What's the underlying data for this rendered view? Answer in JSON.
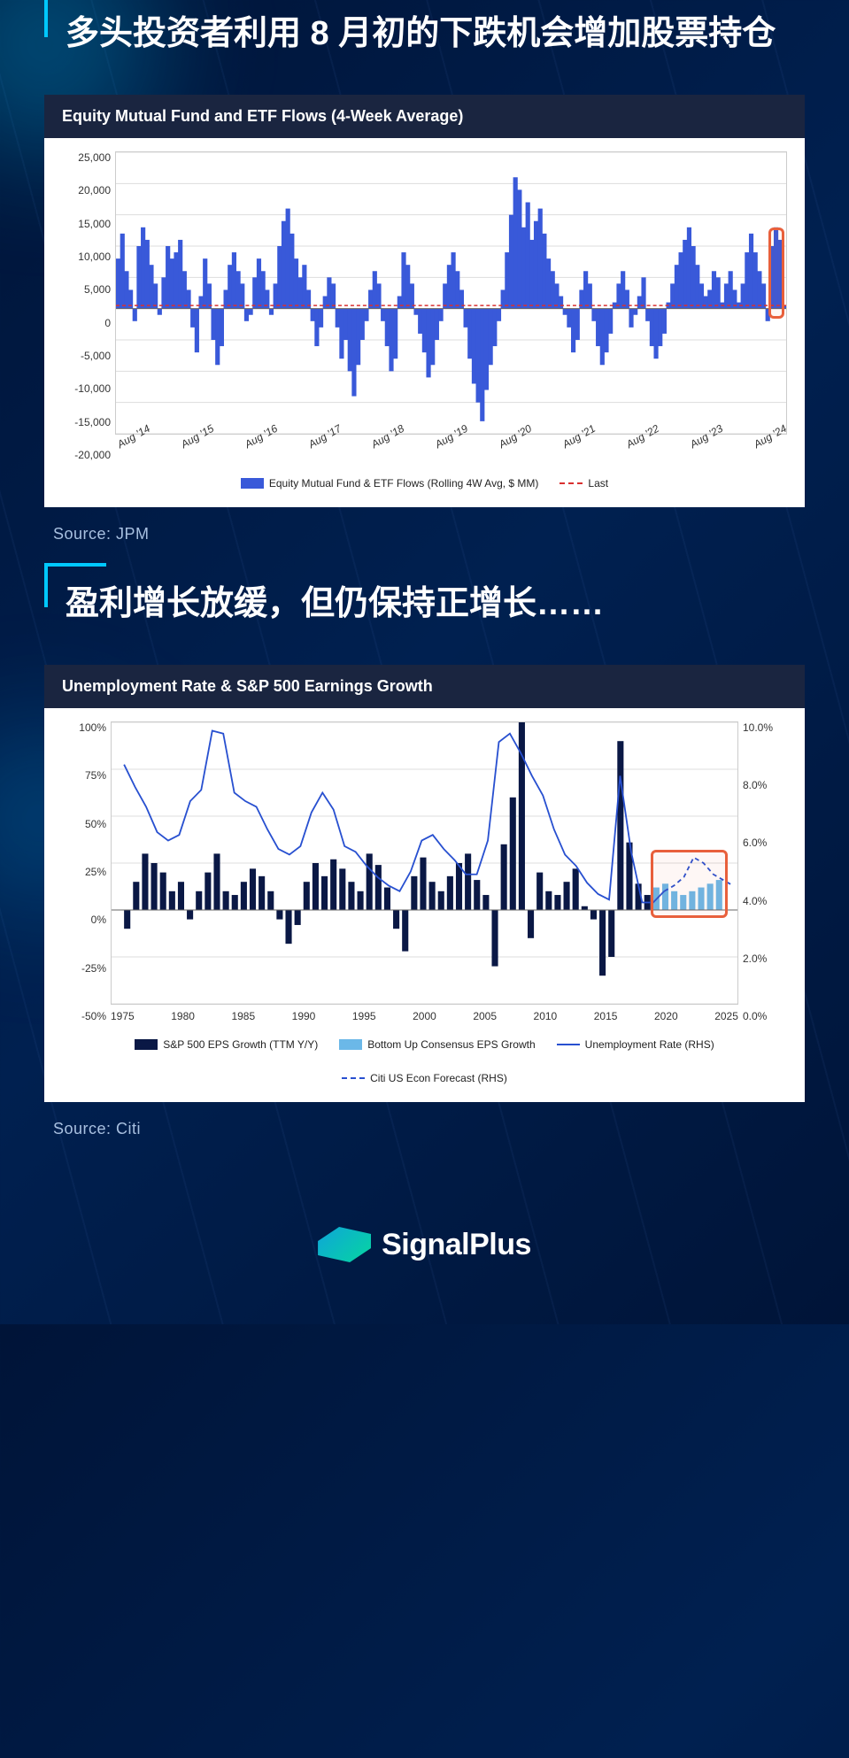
{
  "section1": {
    "title": "多头投资者利用 8 月初的下跌机会增加股票持仓",
    "source": "Source: JPM",
    "chart": {
      "type": "area",
      "header": "Equity Mutual Fund and ETF Flows (4-Week Average)",
      "ylim": [
        -20000,
        25000
      ],
      "yticks": [
        25000,
        20000,
        15000,
        10000,
        5000,
        0,
        -5000,
        -10000,
        -15000,
        -20000
      ],
      "ytick_labels": [
        "25,000",
        "20,000",
        "15,000",
        "10,000",
        "5,000",
        "0",
        "-5,000",
        "-10,000",
        "-15,000",
        "-20,000"
      ],
      "xticks": [
        "Aug '14",
        "Aug '15",
        "Aug '16",
        "Aug '17",
        "Aug '18",
        "Aug '19",
        "Aug '20",
        "Aug '21",
        "Aug '22",
        "Aug '23",
        "Aug '24"
      ],
      "area_color": "#3959d9",
      "last_line_color": "#d93030",
      "last_value": 500,
      "bg": "#ffffff",
      "header_bg": "#1a2540",
      "legend": [
        {
          "type": "box",
          "color": "#3959d9",
          "label": "Equity Mutual Fund & ETF Flows (Rolling 4W Avg, $ MM)"
        },
        {
          "type": "dash",
          "color": "#d93030",
          "label": "Last"
        }
      ],
      "highlight": {
        "color": "#e8603c"
      },
      "data": [
        8000,
        12000,
        6000,
        3000,
        -2000,
        10000,
        13000,
        11000,
        7000,
        4000,
        -1000,
        5000,
        10000,
        8000,
        9000,
        11000,
        6000,
        3000,
        -3000,
        -7000,
        2000,
        8000,
        4000,
        -5000,
        -9000,
        -6000,
        3000,
        7000,
        9000,
        6000,
        4000,
        -2000,
        -1000,
        5000,
        8000,
        6000,
        3000,
        -1000,
        4000,
        10000,
        14000,
        16000,
        12000,
        8000,
        5000,
        7000,
        3000,
        -2000,
        -6000,
        -3000,
        2000,
        5000,
        4000,
        -3000,
        -8000,
        -5000,
        -10000,
        -14000,
        -9000,
        -5000,
        -2000,
        3000,
        6000,
        4000,
        -2000,
        -6000,
        -10000,
        -8000,
        2000,
        9000,
        7000,
        4000,
        -1000,
        -4000,
        -7000,
        -11000,
        -9000,
        -5000,
        -2000,
        4000,
        7000,
        9000,
        6000,
        3000,
        -3000,
        -8000,
        -12000,
        -15000,
        -18000,
        -13000,
        -9000,
        -6000,
        -2000,
        3000,
        9000,
        15000,
        21000,
        19000,
        13000,
        17000,
        11000,
        14000,
        16000,
        12000,
        8000,
        6000,
        4000,
        2000,
        -1000,
        -3000,
        -7000,
        -5000,
        3000,
        6000,
        4000,
        -2000,
        -6000,
        -9000,
        -7000,
        -4000,
        1000,
        4000,
        6000,
        3000,
        -3000,
        -1000,
        2000,
        5000,
        -2000,
        -6000,
        -8000,
        -6000,
        -4000,
        1000,
        4000,
        7000,
        9000,
        11000,
        13000,
        10000,
        7000,
        4000,
        2000,
        3000,
        6000,
        5000,
        1000,
        4000,
        6000,
        3000,
        1000,
        4000,
        9000,
        12000,
        9000,
        6000,
        4000,
        -2000,
        10000,
        13000,
        11000,
        500
      ]
    }
  },
  "section2": {
    "title": "盈利增长放缓，但仍保持正增长……",
    "source": "Source: Citi",
    "chart": {
      "type": "combo",
      "header": "Unemployment Rate & S&P 500 Earnings Growth",
      "ylim_l": [
        -50,
        100
      ],
      "yticks_l": [
        100,
        75,
        50,
        25,
        0,
        -25,
        -50
      ],
      "ytick_labels_l": [
        "100%",
        "75%",
        "50%",
        "25%",
        "0%",
        "-25%",
        "-50%"
      ],
      "ylim_r": [
        0,
        10
      ],
      "yticks_r": [
        10,
        8,
        6,
        4,
        2,
        0
      ],
      "ytick_labels_r": [
        "10.0%",
        "8.0%",
        "6.0%",
        "4.0%",
        "2.0%",
        "0.0%"
      ],
      "xticks": [
        "1975",
        "1980",
        "1985",
        "1990",
        "1995",
        "2000",
        "2005",
        "2010",
        "2015",
        "2020",
        "2025"
      ],
      "bar_color": "#0a1845",
      "bar2_color": "#6bb8e8",
      "line_color": "#2850d0",
      "line_dash_color": "#2850d0",
      "bg": "#ffffff",
      "header_bg": "#1a2540",
      "legend": [
        {
          "type": "box",
          "color": "#0a1845",
          "label": "S&P 500 EPS Growth (TTM Y/Y)"
        },
        {
          "type": "box",
          "color": "#6bb8e8",
          "label": "Bottom Up Consensus EPS Growth"
        },
        {
          "type": "line",
          "color": "#2850d0",
          "label": "Unemployment Rate (RHS)"
        },
        {
          "type": "dash",
          "color": "#2850d0",
          "label": "Citi US Econ Forecast (RHS)"
        }
      ],
      "highlight": {
        "color": "#e8603c"
      },
      "eps_data": [
        -10,
        15,
        30,
        25,
        20,
        10,
        15,
        -5,
        10,
        20,
        30,
        10,
        8,
        15,
        22,
        18,
        10,
        -5,
        -18,
        -8,
        15,
        25,
        18,
        27,
        22,
        15,
        10,
        30,
        24,
        12,
        -10,
        -22,
        18,
        28,
        15,
        10,
        18,
        25,
        30,
        16,
        8,
        -30,
        35,
        60,
        100,
        -15,
        20,
        10,
        8,
        15,
        22,
        2,
        -5,
        -35,
        -25,
        90,
        36,
        14,
        8
      ],
      "forecast_data": [
        12,
        14,
        10,
        8,
        10,
        12,
        14,
        16
      ],
      "unemp_data": [
        8.5,
        7.7,
        7.0,
        6.1,
        5.8,
        6.0,
        7.2,
        7.6,
        9.7,
        9.6,
        7.5,
        7.2,
        7.0,
        6.2,
        5.5,
        5.3,
        5.6,
        6.8,
        7.5,
        6.9,
        5.6,
        5.4,
        4.9,
        4.5,
        4.2,
        4.0,
        4.7,
        5.8,
        6.0,
        5.5,
        5.1,
        4.6,
        4.6,
        5.8,
        9.3,
        9.6,
        8.9,
        8.1,
        7.4,
        6.2,
        5.3,
        4.9,
        4.3,
        3.9,
        3.7,
        8.1,
        5.4,
        3.6,
        3.6,
        4.0
      ],
      "unemp_forecast": [
        4.0,
        4.2,
        4.5,
        5.2,
        5.0,
        4.6,
        4.4,
        4.2
      ]
    }
  },
  "brand": "SignalPlus"
}
